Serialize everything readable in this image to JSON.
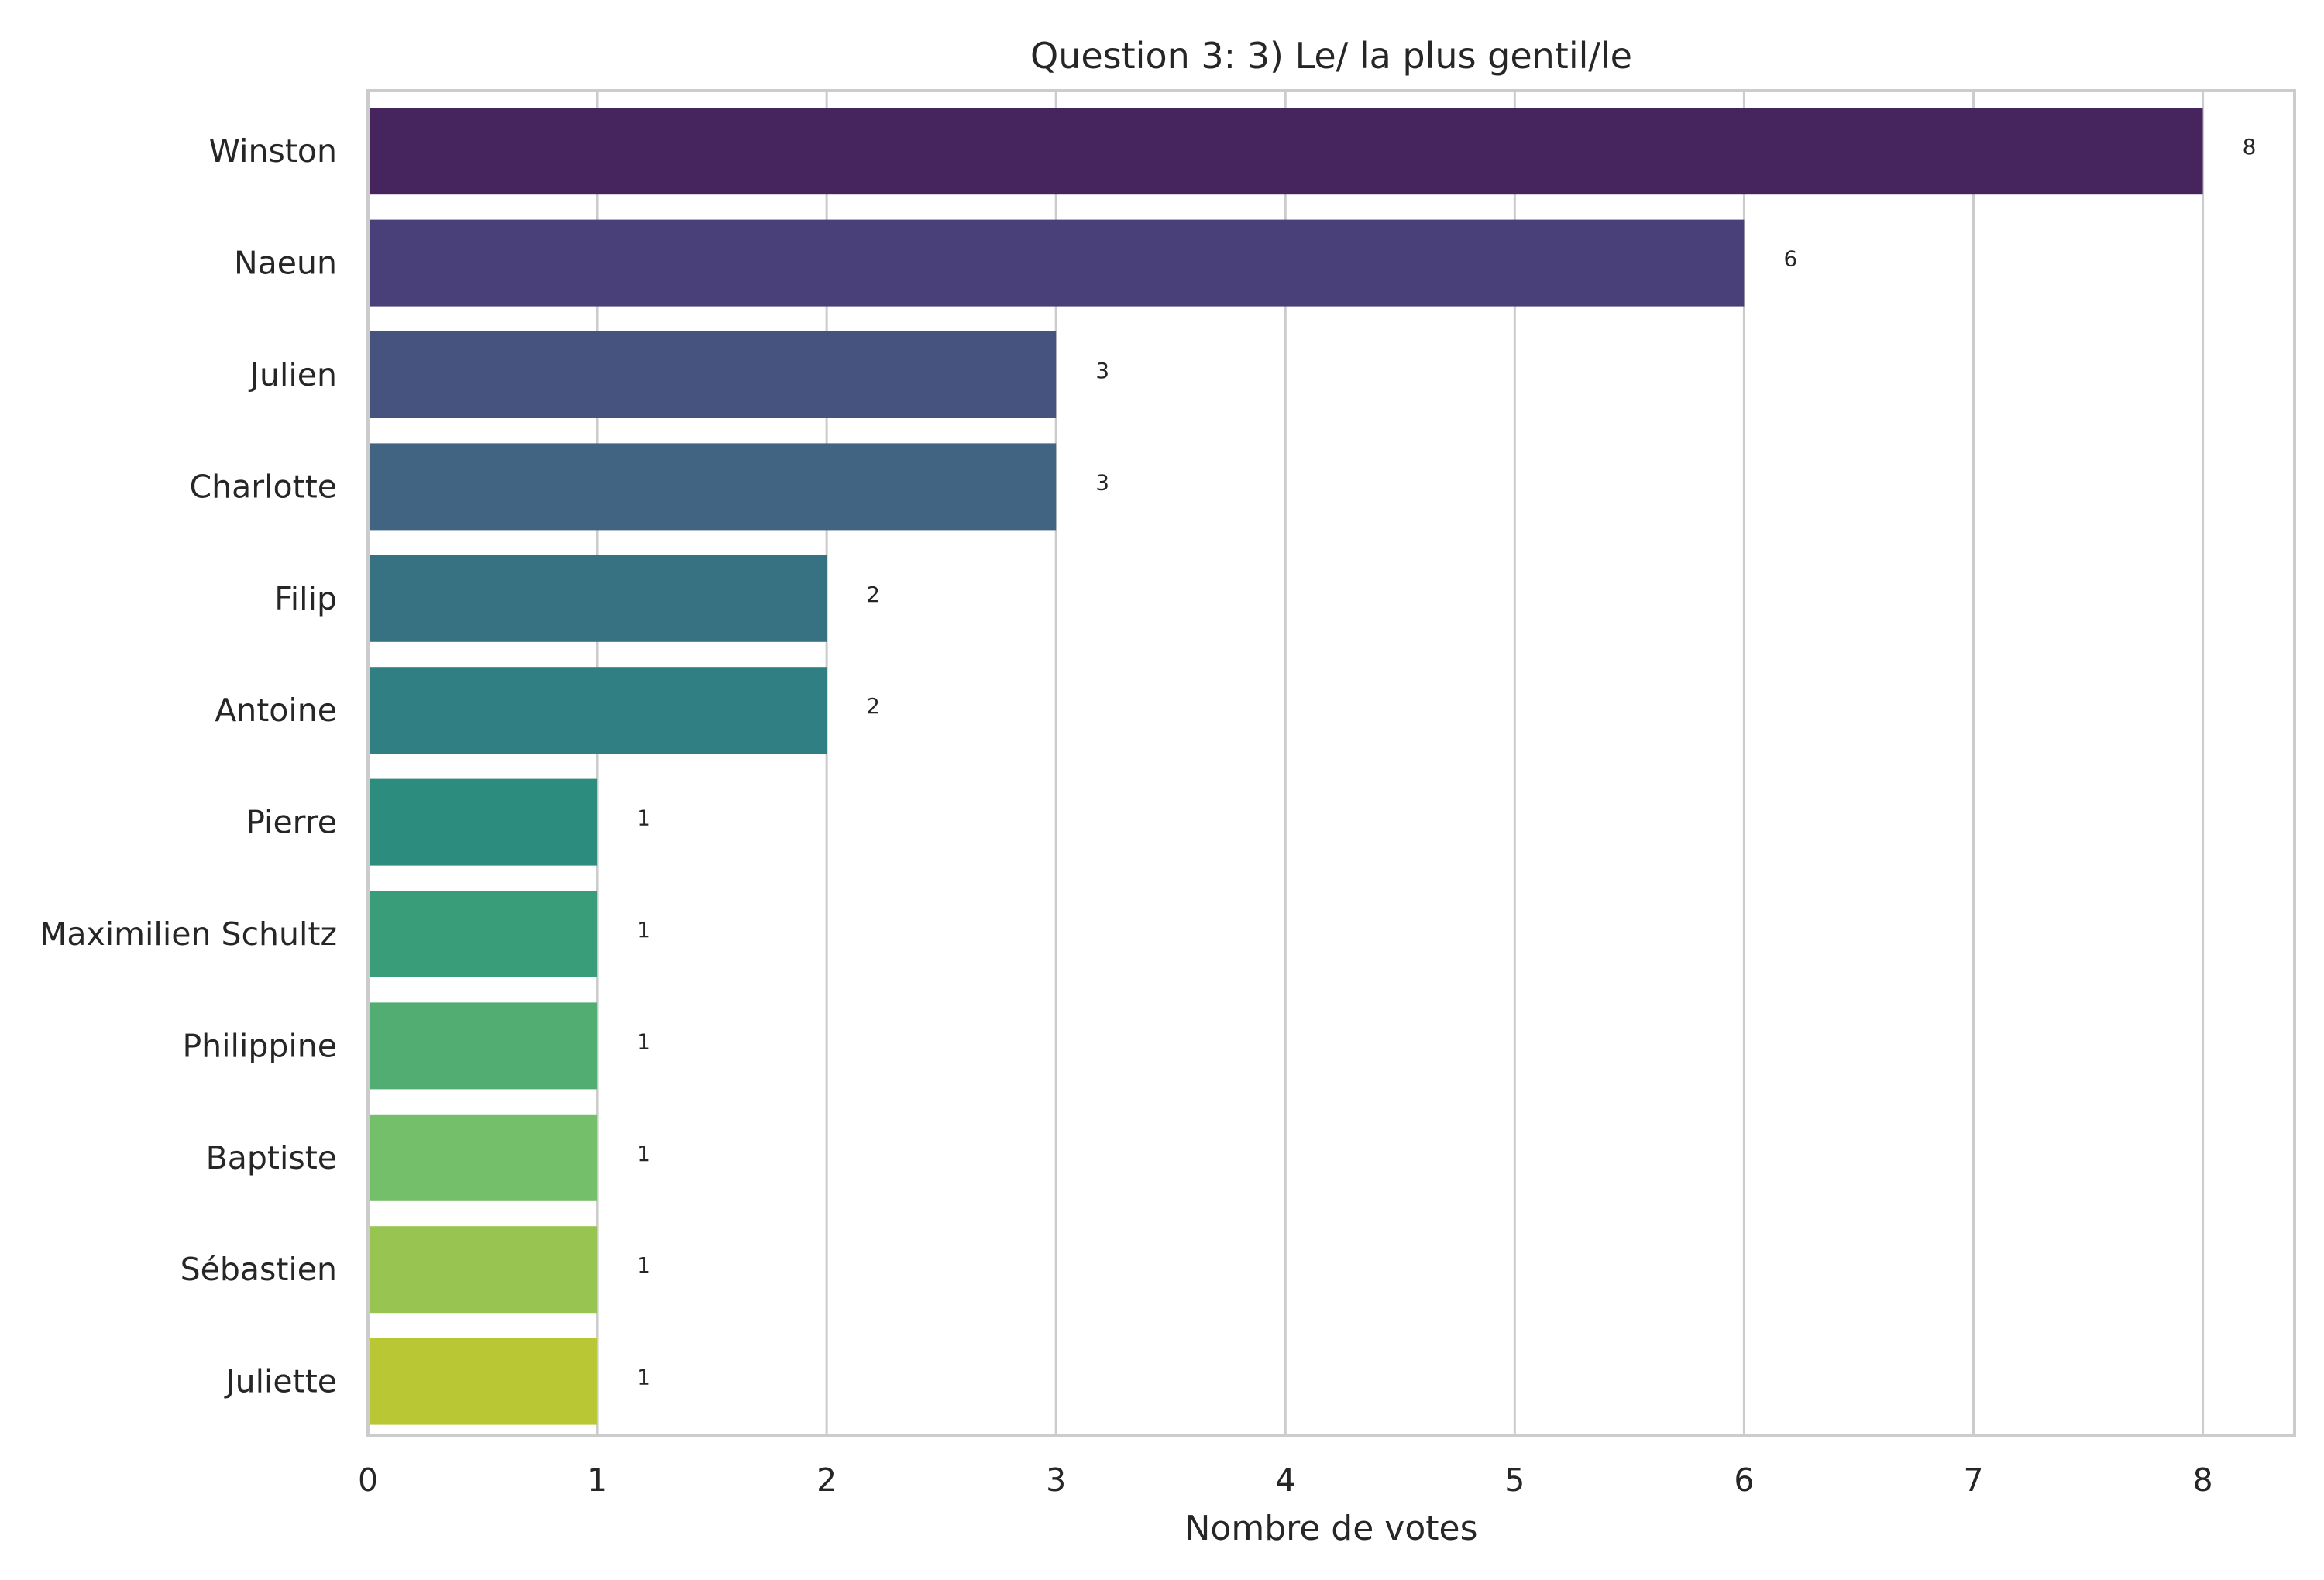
{
  "chart_data": {
    "type": "bar",
    "orientation": "horizontal",
    "title": "Question 3: 3) Le/ la plus gentil/le",
    "xlabel": "Nombre de votes",
    "ylabel": "",
    "xlim": [
      0,
      8.4
    ],
    "x_ticks": [
      0,
      1,
      2,
      3,
      4,
      5,
      6,
      7,
      8
    ],
    "grid": "vertical",
    "legend": "none",
    "palette": "viridis",
    "categories": [
      "Winston",
      "Naeun",
      "Julien",
      "Charlotte",
      "Filip",
      "Antoine",
      "Pierre",
      "Maximilien Schultz",
      "Philippine",
      "Baptiste",
      "Sébastien",
      "Juliette"
    ],
    "values": [
      8,
      6,
      3,
      3,
      2,
      2,
      1,
      1,
      1,
      1,
      1,
      1
    ],
    "data_labels": [
      "8",
      "6",
      "3",
      "3",
      "2",
      "2",
      "1",
      "1",
      "1",
      "1",
      "1",
      "1"
    ],
    "colors": [
      "#46255f",
      "#4a4079",
      "#46537f",
      "#406482",
      "#377283",
      "#307f82",
      "#2c8c7d",
      "#389d78",
      "#51ad72",
      "#74bf69",
      "#98c552",
      "#bac734"
    ],
    "grid_color": "#cccccc",
    "frame_color": "#cccccc"
  }
}
